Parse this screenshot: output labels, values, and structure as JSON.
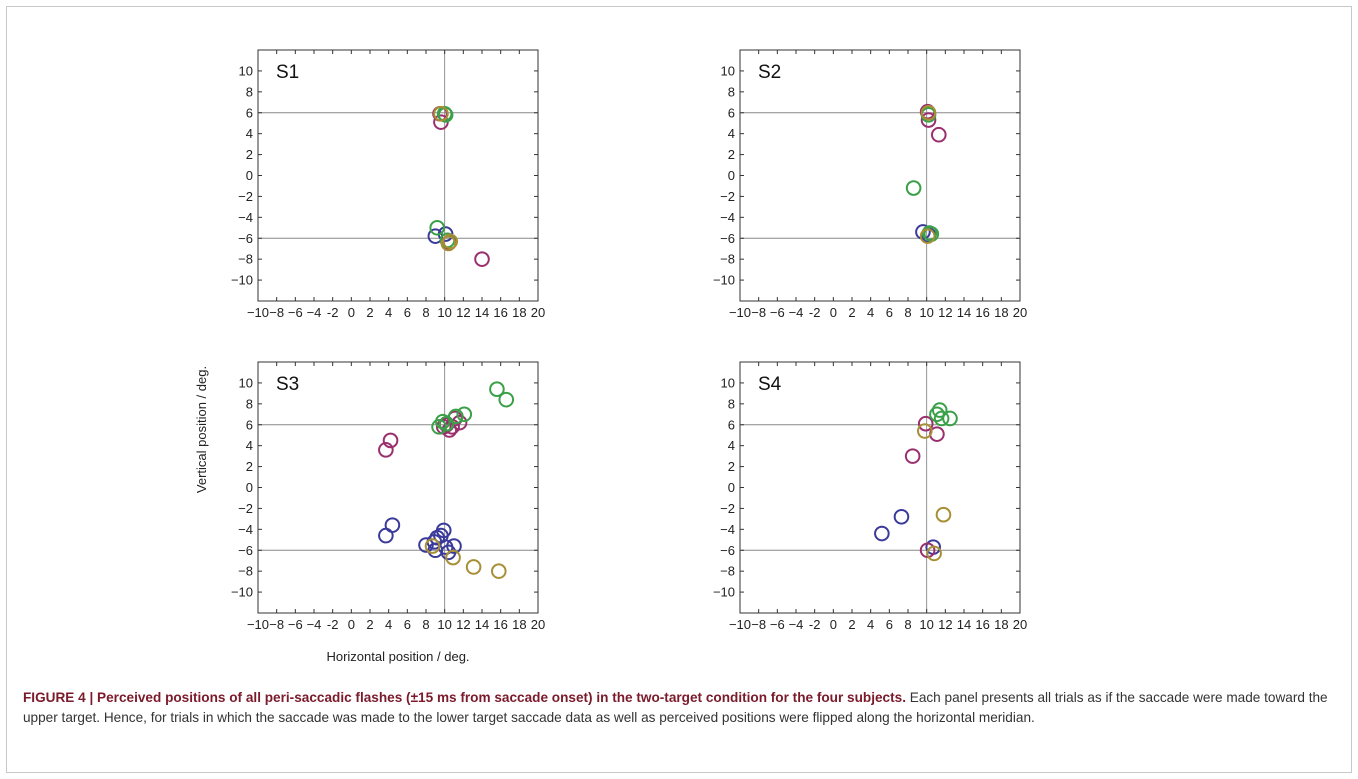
{
  "figure": {
    "caption_title": "FIGURE 4 | Perceived positions of all peri-saccadic flashes (±15 ms from saccade onset) in the two-target condition for the four subjects.",
    "caption_body": " Each panel presents all trials as if the saccade were made toward the upper target. Hence, for trials in which the saccade was made to the lower target saccade data as well as perceived positions were flipped along the horizontal meridian."
  },
  "colors": {
    "blue": "#3a3a9a",
    "magenta": "#9a2f6e",
    "green": "#3aa048",
    "olive": "#a88f35"
  },
  "chart_data": [
    {
      "type": "scatter",
      "panel_label": "S1",
      "xlabel": "",
      "ylabel": "",
      "xlim": [
        -10,
        20
      ],
      "ylim": [
        -12,
        12
      ],
      "x_ticks": [
        -10,
        -8,
        -6,
        -4,
        -2,
        0,
        2,
        4,
        6,
        8,
        10,
        12,
        14,
        16,
        18,
        20
      ],
      "x_tick_labels": [
        "−10",
        "−8",
        "−6",
        "−4",
        "-2",
        "0",
        "2",
        "4",
        "6",
        "8",
        "10",
        "12",
        "14",
        "16",
        "18",
        "20"
      ],
      "y_ticks": [
        10,
        8,
        6,
        4,
        2,
        0,
        -2,
        -4,
        -6,
        -8,
        -10
      ],
      "y_tick_labels": [
        "10",
        "8",
        "6",
        "4",
        "2",
        "0",
        "−2",
        "−4",
        "−6",
        "−8",
        "−10"
      ],
      "reference_lines": {
        "x": 10,
        "y": [
          6,
          -6
        ]
      },
      "series": [
        {
          "color": "blue",
          "points": [
            [
              9.0,
              -5.8
            ],
            [
              10.1,
              -5.6
            ]
          ]
        },
        {
          "color": "magenta",
          "points": [
            [
              9.5,
              5.9
            ],
            [
              9.6,
              5.1
            ],
            [
              10.5,
              -6.4
            ],
            [
              14.0,
              -8.0
            ]
          ]
        },
        {
          "color": "green",
          "points": [
            [
              9.2,
              -5.0
            ],
            [
              10.3,
              -6.2
            ],
            [
              10.0,
              5.9
            ],
            [
              10.1,
              5.8
            ]
          ]
        },
        {
          "color": "olive",
          "points": [
            [
              9.6,
              5.9
            ],
            [
              10.4,
              -6.5
            ],
            [
              10.6,
              -6.3
            ]
          ]
        }
      ]
    },
    {
      "type": "scatter",
      "panel_label": "S2",
      "xlabel": "",
      "ylabel": "",
      "xlim": [
        -10,
        20
      ],
      "ylim": [
        -12,
        12
      ],
      "x_ticks": [
        -10,
        -8,
        -6,
        -4,
        -2,
        0,
        2,
        4,
        6,
        8,
        10,
        12,
        14,
        16,
        18,
        20
      ],
      "x_tick_labels": [
        "−10",
        "−8",
        "−6",
        "−4",
        "-2",
        "0",
        "2",
        "4",
        "6",
        "8",
        "10",
        "12",
        "14",
        "16",
        "18",
        "20"
      ],
      "y_ticks": [
        10,
        8,
        6,
        4,
        2,
        0,
        -2,
        -4,
        -6,
        -8,
        -10
      ],
      "y_tick_labels": [
        "10",
        "8",
        "6",
        "4",
        "2",
        "0",
        "−2",
        "−4",
        "−6",
        "−8",
        "−10"
      ],
      "reference_lines": {
        "x": 10,
        "y": [
          6,
          -6
        ]
      },
      "series": [
        {
          "color": "blue",
          "points": [
            [
              9.6,
              -5.4
            ],
            [
              10.2,
              -5.7
            ]
          ]
        },
        {
          "color": "magenta",
          "points": [
            [
              10.1,
              6.1
            ],
            [
              10.2,
              5.3
            ],
            [
              11.3,
              3.9
            ]
          ]
        },
        {
          "color": "green",
          "points": [
            [
              8.6,
              -1.2
            ],
            [
              10.2,
              5.8
            ],
            [
              10.5,
              -5.6
            ],
            [
              10.3,
              -5.5
            ]
          ]
        },
        {
          "color": "olive",
          "points": [
            [
              10.1,
              -5.8
            ],
            [
              10.2,
              6.0
            ]
          ]
        }
      ]
    },
    {
      "type": "scatter",
      "panel_label": "S3",
      "xlabel": "Horizontal position / deg.",
      "ylabel": "Vertical position / deg.",
      "xlim": [
        -10,
        20
      ],
      "ylim": [
        -12,
        12
      ],
      "x_ticks": [
        -10,
        -8,
        -6,
        -4,
        -2,
        0,
        2,
        4,
        6,
        8,
        10,
        12,
        14,
        16,
        18,
        20
      ],
      "x_tick_labels": [
        "−10",
        "−8",
        "−6",
        "−4",
        "-2",
        "0",
        "2",
        "4",
        "6",
        "8",
        "10",
        "12",
        "14",
        "16",
        "18",
        "20"
      ],
      "y_ticks": [
        10,
        8,
        6,
        4,
        2,
        0,
        -2,
        -4,
        -6,
        -8,
        -10
      ],
      "y_tick_labels": [
        "10",
        "8",
        "6",
        "4",
        "2",
        "0",
        "−2",
        "−4",
        "−6",
        "−8",
        "−10"
      ],
      "reference_lines": {
        "x": 10,
        "y": [
          6,
          -6
        ]
      },
      "series": [
        {
          "color": "blue",
          "points": [
            [
              3.7,
              -4.6
            ],
            [
              4.4,
              -3.6
            ],
            [
              8.0,
              -5.5
            ],
            [
              8.9,
              -5.2
            ],
            [
              9.0,
              -6.0
            ],
            [
              9.2,
              -4.8
            ],
            [
              9.6,
              -4.6
            ],
            [
              9.9,
              -4.1
            ],
            [
              10.1,
              -5.7
            ],
            [
              10.4,
              -6.2
            ],
            [
              11.0,
              -5.6
            ]
          ]
        },
        {
          "color": "magenta",
          "points": [
            [
              3.7,
              3.6
            ],
            [
              4.2,
              4.5
            ],
            [
              9.9,
              5.8
            ],
            [
              10.2,
              6.0
            ],
            [
              10.5,
              5.5
            ],
            [
              10.8,
              5.8
            ],
            [
              11.1,
              6.6
            ],
            [
              11.6,
              6.2
            ]
          ]
        },
        {
          "color": "green",
          "points": [
            [
              9.4,
              5.8
            ],
            [
              9.8,
              6.3
            ],
            [
              10.2,
              6.1
            ],
            [
              11.2,
              6.8
            ],
            [
              12.1,
              7.0
            ],
            [
              15.6,
              9.4
            ],
            [
              16.6,
              8.4
            ]
          ]
        },
        {
          "color": "olive",
          "points": [
            [
              8.7,
              -5.6
            ],
            [
              10.9,
              -6.7
            ],
            [
              13.1,
              -7.6
            ],
            [
              15.8,
              -8.0
            ]
          ]
        }
      ]
    },
    {
      "type": "scatter",
      "panel_label": "S4",
      "xlabel": "",
      "ylabel": "",
      "xlim": [
        -10,
        20
      ],
      "ylim": [
        -12,
        12
      ],
      "x_ticks": [
        -10,
        -8,
        -6,
        -4,
        -2,
        0,
        2,
        4,
        6,
        8,
        10,
        12,
        14,
        16,
        18,
        20
      ],
      "x_tick_labels": [
        "−10",
        "−8",
        "−6",
        "−4",
        "-2",
        "0",
        "2",
        "4",
        "6",
        "8",
        "10",
        "12",
        "14",
        "16",
        "18",
        "20"
      ],
      "y_ticks": [
        10,
        8,
        6,
        4,
        2,
        0,
        -2,
        -4,
        -6,
        -8,
        -10
      ],
      "y_tick_labels": [
        "10",
        "8",
        "6",
        "4",
        "2",
        "0",
        "−2",
        "−4",
        "−6",
        "−8",
        "−10"
      ],
      "reference_lines": {
        "x": 10,
        "y": [
          6,
          -6
        ]
      },
      "series": [
        {
          "color": "blue",
          "points": [
            [
              5.2,
              -4.4
            ],
            [
              7.3,
              -2.8
            ],
            [
              10.7,
              -5.7
            ]
          ]
        },
        {
          "color": "magenta",
          "points": [
            [
              8.5,
              3.0
            ],
            [
              9.9,
              6.1
            ],
            [
              10.1,
              -6.0
            ],
            [
              11.1,
              5.1
            ]
          ]
        },
        {
          "color": "green",
          "points": [
            [
              11.1,
              7.0
            ],
            [
              11.4,
              7.4
            ],
            [
              11.6,
              6.6
            ],
            [
              12.5,
              6.6
            ]
          ]
        },
        {
          "color": "olive",
          "points": [
            [
              9.8,
              5.4
            ],
            [
              10.8,
              -6.3
            ],
            [
              11.8,
              -2.6
            ]
          ]
        }
      ]
    }
  ]
}
